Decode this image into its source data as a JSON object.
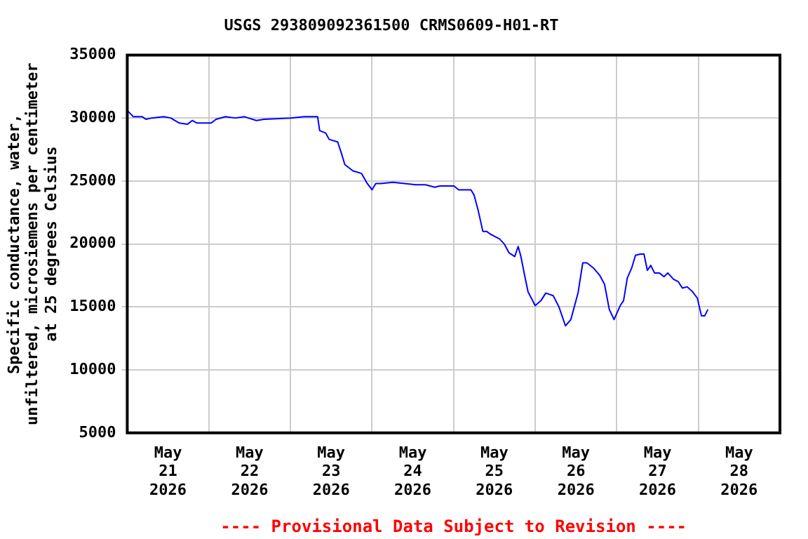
{
  "chart_data": {
    "type": "line",
    "title": "USGS 293809092361500 CRMS0609-H01-RT",
    "ylabel": "Specific conductance, water,\nunfiltered, microsiemens per centimeter\nat 25 degrees Celsius",
    "annotations": [
      "---- Provisional Data Subject to Revision ----"
    ],
    "x": [
      "2026-05-21T00:00",
      "2026-05-21T01:48",
      "2026-05-21T04:24",
      "2026-05-21T05:30",
      "2026-05-21T07:12",
      "2026-05-21T10:42",
      "2026-05-21T12:48",
      "2026-05-21T15:18",
      "2026-05-21T17:42",
      "2026-05-21T19:06",
      "2026-05-21T20:30",
      "2026-05-22T00:42",
      "2026-05-22T02:06",
      "2026-05-22T04:54",
      "2026-05-22T07:42",
      "2026-05-22T10:30",
      "2026-05-22T14:00",
      "2026-05-22T16:12",
      "2026-05-22T23:54",
      "2026-05-23T04:06",
      "2026-05-23T08:00",
      "2026-05-23T08:36",
      "2026-05-23T10:24",
      "2026-05-23T11:24",
      "2026-05-23T13:54",
      "2026-05-23T15:00",
      "2026-05-23T16:00",
      "2026-05-23T18:24",
      "2026-05-23T20:54",
      "2026-05-23T22:36",
      "2026-05-24T00:00",
      "2026-05-24T01:06",
      "2026-05-24T02:36",
      "2026-05-24T06:06",
      "2026-05-24T09:36",
      "2026-05-24T12:54",
      "2026-05-24T15:42",
      "2026-05-24T18:30",
      "2026-05-24T19:54",
      "2026-05-25T00:06",
      "2026-05-25T01:30",
      "2026-05-25T05:06",
      "2026-05-25T06:00",
      "2026-05-25T07:12",
      "2026-05-25T08:36",
      "2026-05-25T09:42",
      "2026-05-25T10:42",
      "2026-05-25T12:06",
      "2026-05-25T13:30",
      "2026-05-25T14:54",
      "2026-05-25T16:18",
      "2026-05-25T18:00",
      "2026-05-25T19:00",
      "2026-05-25T19:48",
      "2026-05-25T20:54",
      "2026-05-25T21:54",
      "2026-05-26T00:00",
      "2026-05-26T01:42",
      "2026-05-26T03:06",
      "2026-05-26T05:18",
      "2026-05-26T07:00",
      "2026-05-26T08:54",
      "2026-05-26T10:30",
      "2026-05-26T12:36",
      "2026-05-26T14:00",
      "2026-05-26T15:12",
      "2026-05-26T17:06",
      "2026-05-26T19:00",
      "2026-05-26T20:24",
      "2026-05-26T21:48",
      "2026-05-26T23:12",
      "2026-05-27T01:00",
      "2026-05-27T02:00",
      "2026-05-27T03:06",
      "2026-05-27T04:24",
      "2026-05-27T05:30",
      "2026-05-27T06:54",
      "2026-05-27T08:00",
      "2026-05-27T09:00",
      "2026-05-27T10:00",
      "2026-05-27T11:06",
      "2026-05-27T12:30",
      "2026-05-27T13:54",
      "2026-05-27T15:00",
      "2026-05-27T16:42",
      "2026-05-27T18:06",
      "2026-05-27T19:18",
      "2026-05-27T20:42",
      "2026-05-27T22:18",
      "2026-05-27T23:42",
      "2026-05-28T00:54",
      "2026-05-28T01:54",
      "2026-05-28T02:48"
    ],
    "series": [
      {
        "color": "#0000ff",
        "values": [
          30600,
          30100,
          30100,
          29900,
          30000,
          30100,
          30000,
          29600,
          29500,
          29800,
          29600,
          29600,
          29900,
          30100,
          30000,
          30100,
          29800,
          29900,
          30000,
          30100,
          30100,
          29000,
          28800,
          28300,
          28100,
          27200,
          26300,
          25800,
          25600,
          24800,
          24300,
          24800,
          24800,
          24900,
          24800,
          24700,
          24700,
          24500,
          24600,
          24600,
          24300,
          24300,
          23900,
          22700,
          21000,
          21000,
          20800,
          20600,
          20400,
          20000,
          19300,
          19000,
          19800,
          19000,
          17500,
          16200,
          15100,
          15500,
          16100,
          15900,
          15000,
          13500,
          14000,
          16100,
          18500,
          18500,
          18100,
          17500,
          16800,
          14800,
          14000,
          15100,
          15500,
          17300,
          18100,
          19100,
          19200,
          19200,
          17900,
          18300,
          17700,
          17700,
          17400,
          17700,
          17200,
          17000,
          16500,
          16600,
          16200,
          15700,
          14300,
          14300,
          14800
        ]
      }
    ],
    "xlim": [
      "2026-05-21T00:00",
      "2026-05-29T00:00"
    ],
    "xticks": [
      {
        "value": "2026-05-21T12:00",
        "label": "May\n21\n2026"
      },
      {
        "value": "2026-05-22T00:00",
        "label": null
      },
      {
        "value": "2026-05-22T12:00",
        "label": "May\n22\n2026"
      },
      {
        "value": "2026-05-23T00:00",
        "label": null
      },
      {
        "value": "2026-05-23T12:00",
        "label": "May\n23\n2026"
      },
      {
        "value": "2026-05-24T00:00",
        "label": null
      },
      {
        "value": "2026-05-24T12:00",
        "label": "May\n24\n2026"
      },
      {
        "value": "2026-05-25T00:00",
        "label": null
      },
      {
        "value": "2026-05-25T12:00",
        "label": "May\n25\n2026"
      },
      {
        "value": "2026-05-26T00:00",
        "label": null
      },
      {
        "value": "2026-05-26T12:00",
        "label": "May\n26\n2026"
      },
      {
        "value": "2026-05-27T00:00",
        "label": null
      },
      {
        "value": "2026-05-27T12:00",
        "label": "May\n27\n2026"
      },
      {
        "value": "2026-05-28T00:00",
        "label": null
      },
      {
        "value": "2026-05-28T12:00",
        "label": "May\n28\n2026"
      }
    ],
    "ylim": [
      5000,
      35000
    ],
    "yticks": [
      5000,
      10000,
      15000,
      20000,
      25000,
      30000,
      35000
    ],
    "grid": true,
    "legend": false,
    "marker": "none",
    "line_style": "solid"
  }
}
